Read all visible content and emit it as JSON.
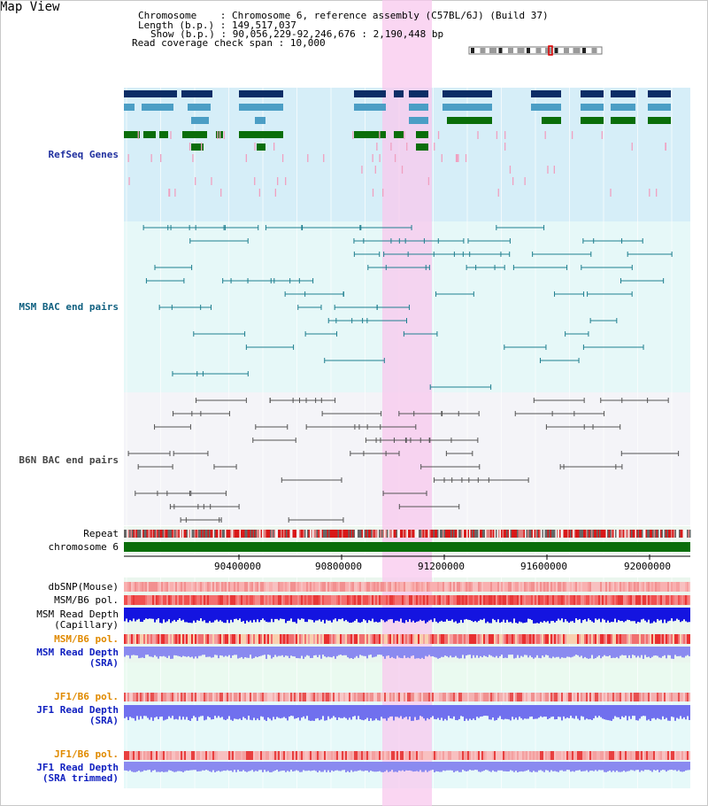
{
  "app": {
    "title": "Map View"
  },
  "info": {
    "chromosome_key": "Chromosome",
    "chromosome_val": "Chromosome 6, reference assembly (C57BL/6J) (Build 37)",
    "length_key": "Length (b.p.)",
    "length_val": "149,517,037",
    "show_key": "Show (b.p.)",
    "show_val": "90,056,229-92,246,676 : 2,190,448 bp",
    "span_key": "Read coverage check span",
    "span_val": "10,000"
  },
  "tracks": {
    "refseq": "RefSeq Genes",
    "msm_bac": "MSM BAC end pairs",
    "b6n_bac": "B6N BAC end pairs",
    "repeat": "Repeat",
    "chromosome": "chromosome 6",
    "dbsnp": "dbSNP(Mouse)",
    "msm_b6_pol": "MSM/B6 pol.",
    "msm_rd_cap_1": "MSM Read Depth",
    "msm_rd_cap_2": "(Capillary)",
    "msm_b6_pol_2": "MSM/B6 pol.",
    "msm_rd_sra_1": "MSM Read Depth",
    "msm_rd_sra_2": "(SRA)",
    "jf1_b6_pol": "JF1/B6 pol.",
    "jf1_rd_sra_1": "JF1 Read Depth",
    "jf1_rd_sra_2": "(SRA)",
    "jf1_b6_pol_2": "JF1/B6 pol.",
    "jf1_rd_trim_1": "JF1 Read Depth",
    "jf1_rd_trim_2": "(SRA trimmed)"
  },
  "axis": {
    "ticks": [
      "90400000",
      "90800000",
      "91200000",
      "91600000",
      "92000000"
    ]
  },
  "colors": {
    "refseq_bg": "#d6eef8",
    "msm_bg": "#e6f8f8",
    "b6n_bg": "#f4f4f8",
    "highlight": "#f8c8ee",
    "gene_dark": "#0c2d66",
    "gene_mid": "#4b9ec5",
    "gene_green": "#0a6e0a",
    "chromosome_bar": "#0a6e0a"
  }
}
